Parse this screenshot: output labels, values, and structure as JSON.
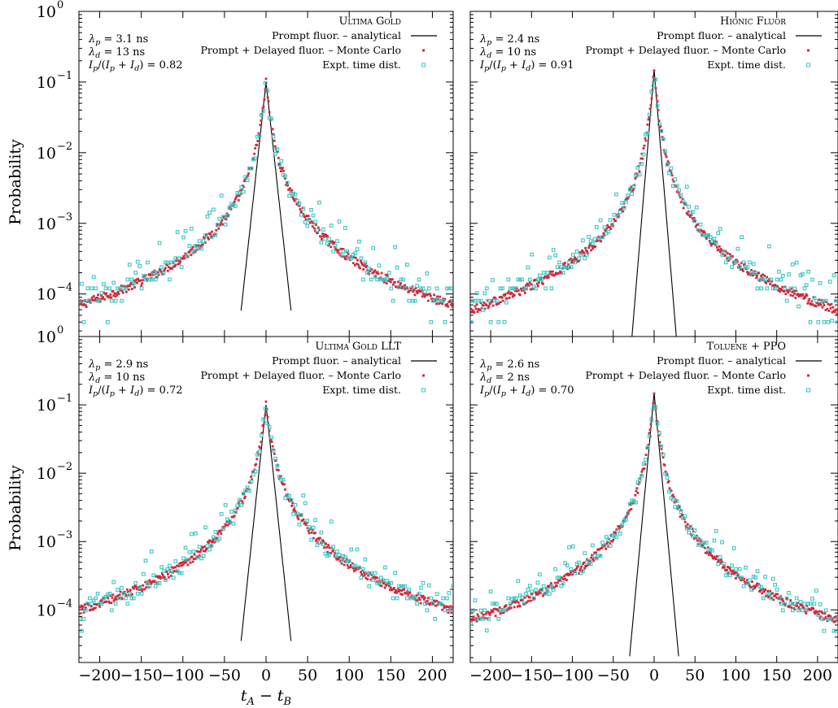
{
  "figure": {
    "ylabel": "Probability",
    "xlabel": "t_A − t_B",
    "xticks": [
      "−200",
      "−150",
      "−100",
      "−50",
      "0",
      "50",
      "100",
      "150",
      "200"
    ],
    "yticks": [
      {
        "base": "10",
        "exp": "0"
      },
      {
        "base": "10",
        "exp": "−1"
      },
      {
        "base": "10",
        "exp": "−2"
      },
      {
        "base": "10",
        "exp": "−3"
      },
      {
        "base": "10",
        "exp": "−4"
      }
    ],
    "legend_labels": {
      "analytical": "Prompt fluor. – analytical",
      "monte_carlo": "Prompt + Delayed fluor. – Monte Carlo",
      "expt": "Expt. time dist."
    },
    "colors": {
      "analytical": "#000000",
      "monte_carlo": "#cc2a3c",
      "expt": "#3cc6c2"
    }
  },
  "chart_data": [
    {
      "type": "scatter",
      "panel": "top-left",
      "title": "Ultima Gold",
      "params": {
        "lambda_p": "= 3.1 ns",
        "lambda_d": "= 13 ns",
        "ratio": "= 0.82"
      },
      "xlim": [
        -225,
        225
      ],
      "ylim": [
        2.5e-05,
        1
      ],
      "yscale": "log",
      "series": [
        {
          "name": "Prompt fluor. – analytical",
          "lambda_ns": 3.1,
          "peak": 0.1,
          "tail_at_225": 7e-05
        },
        {
          "name": "Prompt + Delayed fluor. – Monte Carlo",
          "lambda_ns": 13,
          "peak": 0.1,
          "tail_at_225": 7e-05
        },
        {
          "name": "Expt. time dist.",
          "peak": 0.1,
          "scatter": true
        }
      ]
    },
    {
      "type": "scatter",
      "panel": "top-right",
      "title": "Hionic Fluor",
      "params": {
        "lambda_p": "= 2.4 ns",
        "lambda_d": "= 10 ns",
        "ratio": "= 0.91"
      },
      "xlim": [
        -225,
        225
      ],
      "ylim": [
        2.5e-05,
        1
      ],
      "yscale": "log",
      "series": [
        {
          "name": "Prompt fluor. – analytical",
          "lambda_ns": 2.4,
          "peak": 0.15,
          "tail_at_225": 6e-05
        },
        {
          "name": "Prompt + Delayed fluor. – Monte Carlo",
          "lambda_ns": 10,
          "peak": 0.15,
          "tail_at_225": 6e-05
        },
        {
          "name": "Expt. time dist.",
          "peak": 0.15,
          "scatter": true
        }
      ]
    },
    {
      "type": "scatter",
      "panel": "bottom-left",
      "title": "Ultima Gold LLT",
      "params": {
        "lambda_p": "= 2.9 ns",
        "lambda_d": "= 10 ns",
        "ratio": "= 0.72"
      },
      "xlim": [
        -225,
        225
      ],
      "ylim": [
        1.7e-05,
        1
      ],
      "yscale": "log",
      "series": [
        {
          "name": "Prompt fluor. – analytical",
          "lambda_ns": 2.9,
          "peak": 0.1,
          "tail_at_225": 0.0001
        },
        {
          "name": "Prompt + Delayed fluor. – Monte Carlo",
          "lambda_ns": 10,
          "peak": 0.1,
          "tail_at_225": 0.0001
        },
        {
          "name": "Expt. time dist.",
          "peak": 0.1,
          "scatter": true
        }
      ]
    },
    {
      "type": "scatter",
      "panel": "bottom-right",
      "title": "Toluene + PPO",
      "params": {
        "lambda_p": "= 2.6 ns",
        "lambda_d": "= 2 ns",
        "ratio": "= 0.70"
      },
      "xlim": [
        -225,
        225
      ],
      "ylim": [
        1.7e-05,
        1
      ],
      "yscale": "log",
      "series": [
        {
          "name": "Prompt fluor. – analytical",
          "lambda_ns": 2.6,
          "peak": 0.15,
          "tail_at_225": 7e-05
        },
        {
          "name": "Prompt + Delayed fluor. – Monte Carlo",
          "lambda_ns": 2,
          "peak": 0.15,
          "tail_at_225": 7e-05
        },
        {
          "name": "Expt. time dist.",
          "peak": 0.15,
          "scatter": true
        }
      ]
    }
  ]
}
